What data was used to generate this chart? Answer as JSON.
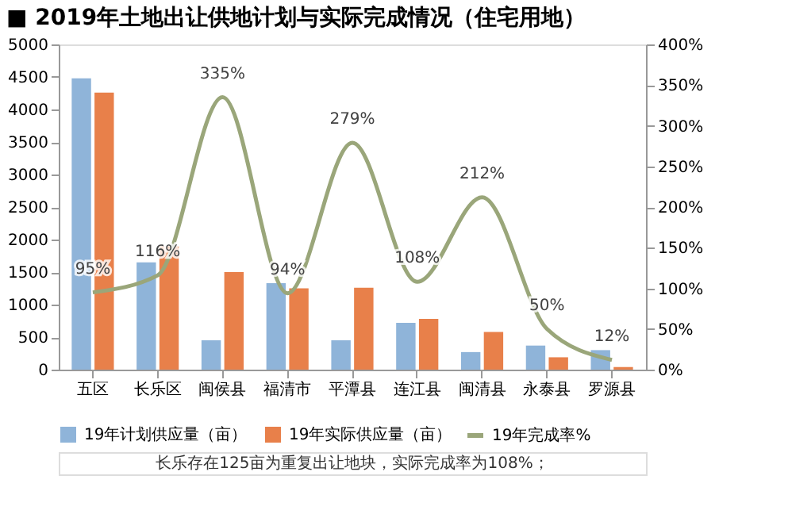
{
  "chart_data": {
    "type": "bar",
    "title": "■ 2019年土地出让供地计划与实际完成情况（住宅用地）",
    "categories": [
      "五区",
      "长乐区",
      "闽侯县",
      "福清市",
      "平潭县",
      "连江县",
      "闽清县",
      "永泰县",
      "罗源县"
    ],
    "series": [
      {
        "name": "19年计划供应量（亩）",
        "color": "#8fb4d9",
        "values": [
          4480,
          1650,
          450,
          1330,
          450,
          720,
          270,
          370,
          300
        ]
      },
      {
        "name": "19年实际供应量（亩）",
        "color": "#e8804a",
        "values": [
          4260,
          1900,
          1500,
          1250,
          1260,
          780,
          580,
          190,
          40
        ]
      },
      {
        "name": "19年完成率%",
        "type": "line",
        "axis": "y2",
        "color": "#9aa67a",
        "values": [
          95,
          116,
          335,
          94,
          279,
          108,
          212,
          50,
          12
        ],
        "value_labels": [
          "95%",
          "116%",
          "335%",
          "94%",
          "279%",
          "108%",
          "212%",
          "50%",
          "12%"
        ]
      }
    ],
    "ylim": [
      0,
      5000
    ],
    "yticks": [
      0,
      500,
      1000,
      1500,
      2000,
      2500,
      3000,
      3500,
      4000,
      4500,
      5000
    ],
    "y2lim": [
      0,
      400
    ],
    "y2ticks": [
      {
        "value": 0,
        "label": "0%"
      },
      {
        "value": 50,
        "label": "50%"
      },
      {
        "value": 100,
        "label": "100%"
      },
      {
        "value": 150,
        "label": "150%"
      },
      {
        "value": 200,
        "label": "200%"
      },
      {
        "value": 250,
        "label": "250%"
      },
      {
        "value": 300,
        "label": "300%"
      },
      {
        "value": 350,
        "label": "350%"
      },
      {
        "value": 400,
        "label": "400%"
      }
    ],
    "grid": false,
    "legend": "bottom",
    "annotations": [
      "长乐存在125亩为重复出让地块，实际完成率为108%；"
    ]
  }
}
